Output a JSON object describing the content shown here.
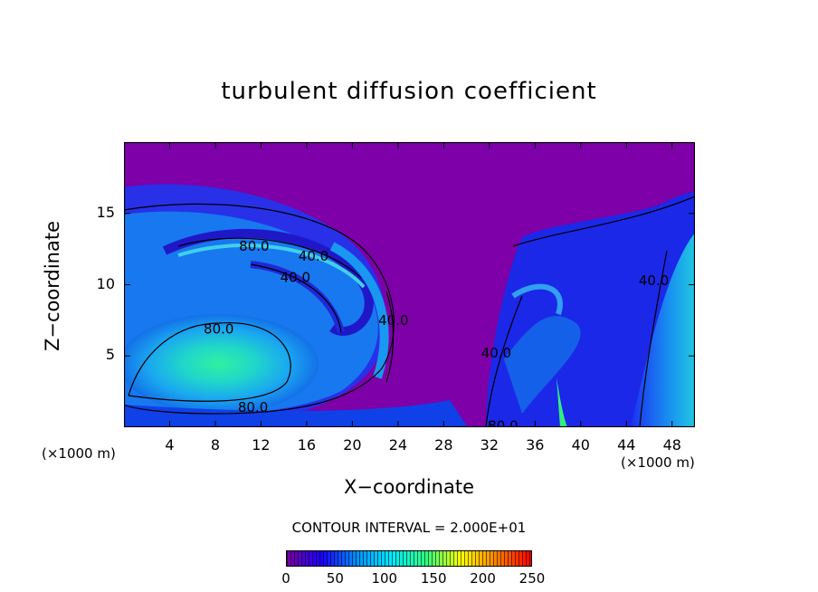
{
  "chart_data": {
    "type": "heatmap",
    "title": "turbulent diffusion coefficient",
    "xlabel": "X−coordinate",
    "ylabel": "Z−coordinate",
    "x_unit": "(×1000 m)",
    "y_unit": "(×1000 m)",
    "xlim": [
      0,
      50
    ],
    "ylim": [
      0,
      20
    ],
    "x_ticks": [
      "4",
      "8",
      "12",
      "16",
      "20",
      "24",
      "28",
      "32",
      "36",
      "40",
      "44",
      "48"
    ],
    "y_ticks": [
      "5",
      "10",
      "15"
    ],
    "contour_interval": "CONTOUR INTERVAL =  2.000E+01",
    "contour_labels": [
      {
        "text": "80.0",
        "x": 11.4,
        "z": 12.7
      },
      {
        "text": "40.0",
        "x": 16.6,
        "z": 12.0
      },
      {
        "text": "40.0",
        "x": 15.0,
        "z": 10.5
      },
      {
        "text": "80.0",
        "x": 8.3,
        "z": 6.9
      },
      {
        "text": "80.0",
        "x": 11.3,
        "z": 1.4
      },
      {
        "text": "40.0",
        "x": 23.6,
        "z": 7.5
      },
      {
        "text": "40.0",
        "x": 32.6,
        "z": 5.2
      },
      {
        "text": "40.0",
        "x": 46.4,
        "z": 10.3
      },
      {
        "text": "80.0",
        "x": 33.2,
        "z": 0.1
      }
    ],
    "colorbar": {
      "min": 0,
      "max": 250,
      "ticks": [
        "0",
        "50",
        "100",
        "150",
        "200",
        "250"
      ],
      "colors": [
        "#7a00a0",
        "#1b00ff",
        "#0090ff",
        "#00e8ff",
        "#30ff80",
        "#ffff00",
        "#ff8000",
        "#ff0000"
      ]
    },
    "field_colors": {
      "background": "#7d00a8",
      "low": "#2018e8",
      "mid": "#1488f0",
      "high": "#20d8d8",
      "peak": "#30f0a0"
    }
  }
}
